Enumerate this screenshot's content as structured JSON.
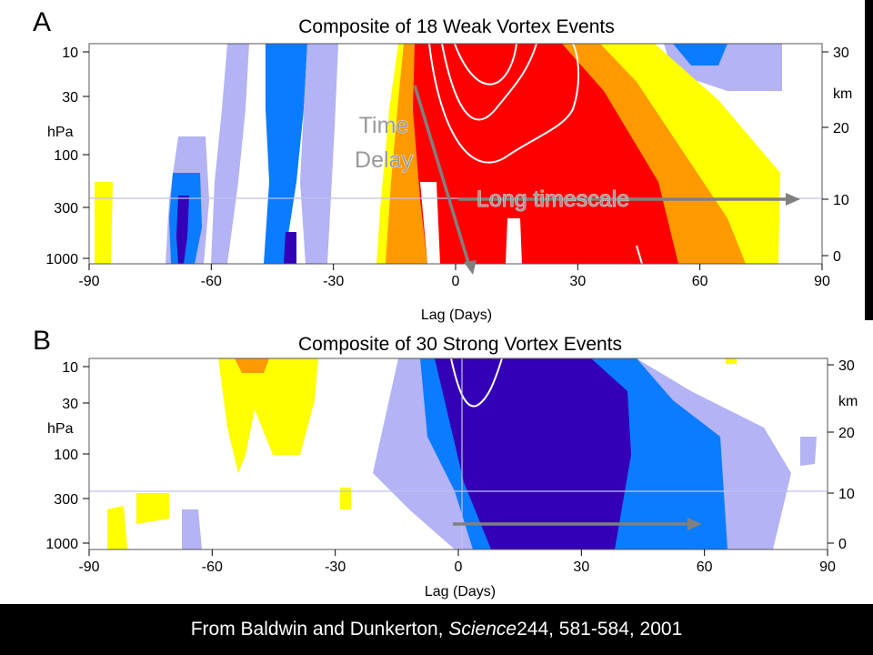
{
  "colors": {
    "strong_pos": "#ff0000",
    "mid_pos": "#ff9900",
    "weak_pos": "#ffff00",
    "weak_neg": "#b3b3f5",
    "mid_neg": "#0a7cff",
    "strong_neg": "#3300b8",
    "contour": "#ffffff",
    "arrow": "#808080",
    "guide": "#c0c0f0"
  },
  "chart_data": [
    {
      "type": "heatmap",
      "panel_label": "A",
      "title": "Composite of 18 Weak Vortex Events",
      "xlabel": "Lag (Days)",
      "ylabel": "hPa",
      "ylabel_right": "km",
      "x_ticks": [
        "-90",
        "-60",
        "-30",
        "0",
        "30",
        "60",
        "90"
      ],
      "y_ticks": [
        "10",
        "30",
        "100",
        "300",
        "1000"
      ],
      "y_ticks_right": [
        "30",
        "20",
        "10",
        "0"
      ],
      "xlim": [
        -90,
        90
      ],
      "annotations": [
        "Time",
        "Delay",
        "Long timescale"
      ]
    },
    {
      "type": "heatmap",
      "panel_label": "B",
      "title": "Composite of 30 Strong Vortex Events",
      "xlabel": "Lag (Days)",
      "ylabel": "hPa",
      "ylabel_right": "km",
      "x_ticks": [
        "-90",
        "-60",
        "-30",
        "0",
        "30",
        "60",
        "90"
      ],
      "y_ticks": [
        "10",
        "30",
        "100",
        "300",
        "1000"
      ],
      "y_ticks_right": [
        "30",
        "20",
        "10",
        "0"
      ],
      "xlim": [
        -90,
        90
      ]
    }
  ],
  "footer": {
    "prefix": "From Baldwin and Dunkerton, ",
    "journal": "Science",
    "suffix": " 244, 581-584, 2001"
  }
}
